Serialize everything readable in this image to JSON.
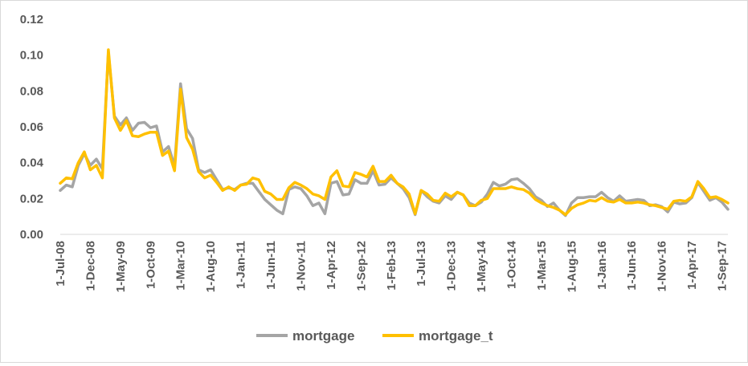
{
  "chart_data": {
    "type": "line",
    "title": "",
    "xlabel": "",
    "ylabel": "",
    "ylim": [
      0,
      0.12
    ],
    "yticks": [
      0.0,
      0.02,
      0.04,
      0.06,
      0.08,
      0.1,
      0.12
    ],
    "ytick_labels": [
      "0.00",
      "0.02",
      "0.04",
      "0.06",
      "0.08",
      "0.10",
      "0.12"
    ],
    "x_start": "2008-07",
    "x_step_months": 1,
    "x_tick_labels": [
      "1-Jul-08",
      "1-Dec-08",
      "1-May-09",
      "1-Oct-09",
      "1-Mar-10",
      "1-Aug-10",
      "1-Jan-11",
      "1-Jun-11",
      "1-Nov-11",
      "1-Apr-12",
      "1-Sep-12",
      "1-Feb-13",
      "1-Jul-13",
      "1-Dec-13",
      "1-May-14",
      "1-Oct-14",
      "1-Mar-15",
      "1-Aug-15",
      "1-Jan-16",
      "1-Jun-16",
      "1-Nov-16",
      "1-Apr-17",
      "1-Sep-17"
    ],
    "grid": false,
    "legend_position": "bottom",
    "series": [
      {
        "name": "mortgage",
        "color": "#a5a5a5",
        "values": [
          0.0245,
          0.0275,
          0.0265,
          0.0385,
          0.045,
          0.0385,
          0.042,
          0.0365,
          0.1015,
          0.066,
          0.061,
          0.065,
          0.058,
          0.062,
          0.0625,
          0.0595,
          0.0605,
          0.046,
          0.049,
          0.038,
          0.084,
          0.059,
          0.0535,
          0.036,
          0.0345,
          0.036,
          0.0305,
          0.025,
          0.026,
          0.025,
          0.0275,
          0.0285,
          0.0285,
          0.024,
          0.0195,
          0.0165,
          0.0135,
          0.0115,
          0.025,
          0.0265,
          0.0255,
          0.0215,
          0.016,
          0.0175,
          0.0115,
          0.0285,
          0.0295,
          0.022,
          0.0225,
          0.0305,
          0.0285,
          0.0285,
          0.0355,
          0.0275,
          0.028,
          0.0315,
          0.0285,
          0.0255,
          0.0205,
          0.011,
          0.0245,
          0.021,
          0.0185,
          0.0175,
          0.0215,
          0.0195,
          0.0235,
          0.022,
          0.0175,
          0.016,
          0.018,
          0.0225,
          0.029,
          0.027,
          0.028,
          0.0305,
          0.031,
          0.0285,
          0.0255,
          0.021,
          0.019,
          0.0155,
          0.0175,
          0.0135,
          0.0105,
          0.0175,
          0.0205,
          0.0205,
          0.021,
          0.021,
          0.0235,
          0.0205,
          0.0185,
          0.0215,
          0.0185,
          0.019,
          0.0195,
          0.019,
          0.016,
          0.0165,
          0.0155,
          0.0125,
          0.018,
          0.017,
          0.0175,
          0.0205,
          0.029,
          0.024,
          0.019,
          0.0205,
          0.018,
          0.014
        ]
      },
      {
        "name": "mortgage_t",
        "color": "#ffc000",
        "values": [
          0.0285,
          0.0315,
          0.031,
          0.04,
          0.046,
          0.036,
          0.0385,
          0.0315,
          0.103,
          0.065,
          0.058,
          0.0635,
          0.055,
          0.0545,
          0.056,
          0.057,
          0.057,
          0.044,
          0.0465,
          0.0355,
          0.081,
          0.054,
          0.0475,
          0.035,
          0.0315,
          0.033,
          0.029,
          0.0245,
          0.0265,
          0.0245,
          0.0275,
          0.028,
          0.0315,
          0.0305,
          0.024,
          0.0225,
          0.0195,
          0.0195,
          0.026,
          0.029,
          0.0275,
          0.0255,
          0.0225,
          0.0215,
          0.0195,
          0.032,
          0.0355,
          0.027,
          0.0265,
          0.0345,
          0.0335,
          0.032,
          0.038,
          0.0295,
          0.0295,
          0.033,
          0.0285,
          0.0265,
          0.0225,
          0.0115,
          0.0245,
          0.0225,
          0.019,
          0.0185,
          0.023,
          0.021,
          0.0235,
          0.022,
          0.016,
          0.016,
          0.019,
          0.02,
          0.0255,
          0.0255,
          0.0255,
          0.0265,
          0.0255,
          0.025,
          0.023,
          0.0195,
          0.0175,
          0.016,
          0.015,
          0.0135,
          0.011,
          0.0145,
          0.0165,
          0.0175,
          0.019,
          0.0185,
          0.0205,
          0.0185,
          0.018,
          0.0195,
          0.0175,
          0.0175,
          0.018,
          0.0175,
          0.0165,
          0.016,
          0.015,
          0.014,
          0.0185,
          0.019,
          0.0185,
          0.021,
          0.0295,
          0.0255,
          0.0205,
          0.021,
          0.0195,
          0.0175
        ]
      }
    ]
  }
}
